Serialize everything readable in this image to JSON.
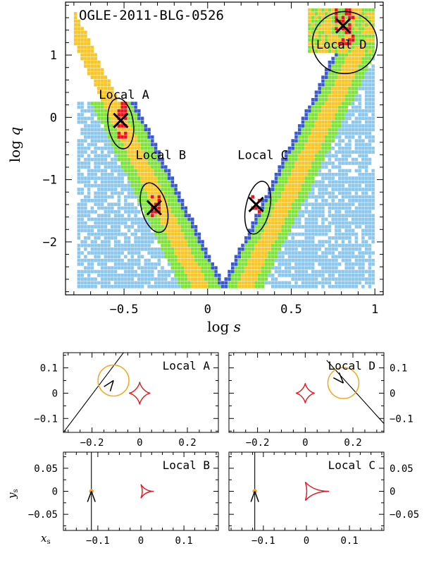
{
  "colors": {
    "white": "#ffffff",
    "blue": "#3a59d1",
    "lightblue": "#8ec7ec",
    "green": "#7fe23a",
    "yellow": "#f7c62a",
    "red": "#e8141b",
    "orange": "#f5a623",
    "caustic": "#e8141b"
  },
  "chart_data": [
    {
      "type": "heatmap",
      "title": "OGLE-2011-BLG-0526",
      "xlabel": "log s",
      "ylabel": "log q",
      "xlim": [
        -0.85,
        1.05
      ],
      "ylim": [
        -2.85,
        1.85
      ],
      "xticks": [
        -0.5,
        0,
        0.5,
        1
      ],
      "xtick_labels": [
        "−0.5",
        "0",
        "0.5",
        "1"
      ],
      "yticks": [
        -2,
        -1,
        0,
        1
      ],
      "ytick_labels": [
        "−2",
        "−1",
        "0",
        "1"
      ],
      "annotations": [
        {
          "label": "Local A",
          "x": -0.52,
          "y": -0.05,
          "label_x": -0.5,
          "label_y": 0.3
        },
        {
          "label": "Local B",
          "x": -0.32,
          "y": -1.45,
          "label_x": -0.28,
          "label_y": -0.67
        },
        {
          "label": "Local C",
          "x": 0.29,
          "y": -1.4,
          "label_x": 0.33,
          "label_y": -0.67
        },
        {
          "label": "Local D",
          "x": 0.81,
          "y": 1.47,
          "label_x": 0.8,
          "label_y": 1.1
        }
      ]
    },
    {
      "type": "scatter",
      "title": "Local A",
      "xlabel": "",
      "ylabel": "",
      "xlim": [
        -0.32,
        0.33
      ],
      "ylim": [
        -0.155,
        0.16
      ],
      "xticks": [
        -0.2,
        0,
        0.2
      ],
      "xtick_labels": [
        "−0.2",
        "0",
        "0.2"
      ],
      "yticks": [
        -0.1,
        0,
        0.1
      ],
      "ytick_labels": [
        "−0.1",
        "0",
        "0.1"
      ],
      "source": {
        "x": -0.11,
        "y": 0.05,
        "r": 0.065
      },
      "caustic": {
        "x": 0.0,
        "y": 0.0,
        "size": 0.045
      },
      "trajectory": [
        [
          -0.32,
          -0.155
        ],
        [
          -0.02,
          0.22
        ]
      ]
    },
    {
      "type": "scatter",
      "title": "Local D",
      "xlabel": "",
      "ylabel": "",
      "xlim": [
        -0.32,
        0.33
      ],
      "ylim": [
        -0.155,
        0.16
      ],
      "xticks": [
        -0.2,
        0,
        0.2
      ],
      "xtick_labels": [
        "−0.2",
        "0",
        "0.2"
      ],
      "yticks": [
        -0.1,
        0,
        0.1
      ],
      "ytick_labels": [
        "−0.1",
        "0",
        "0.1"
      ],
      "source": {
        "x": 0.16,
        "y": 0.04,
        "r": 0.065
      },
      "caustic": {
        "x": 0.0,
        "y": 0.0,
        "size": 0.04
      },
      "trajectory": [
        [
          0.09,
          0.13
        ],
        [
          0.33,
          -0.12
        ]
      ]
    },
    {
      "type": "scatter",
      "title": "Local B",
      "xlabel": "x_s",
      "ylabel": "y_s",
      "xlim": [
        -0.18,
        0.18
      ],
      "ylim": [
        -0.085,
        0.085
      ],
      "xticks": [
        -0.1,
        0,
        0.1
      ],
      "xtick_labels": [
        "−0.1",
        "0",
        "0.1"
      ],
      "yticks": [
        -0.05,
        0,
        0.05
      ],
      "ytick_labels": [
        "−0.05",
        "0",
        "0.05"
      ],
      "source": {
        "x": -0.115,
        "y": 0.0,
        "r": 0.003
      },
      "caustic": {
        "x": 0.015,
        "y": 0.0,
        "width": 0.03,
        "height": 0.015
      },
      "trajectory": [
        [
          -0.115,
          -0.085
        ],
        [
          -0.115,
          0.085
        ]
      ]
    },
    {
      "type": "scatter",
      "title": "Local C",
      "xlabel": "",
      "ylabel": "",
      "xlim": [
        -0.18,
        0.18
      ],
      "ylim": [
        -0.085,
        0.085
      ],
      "xticks": [
        -0.1,
        0,
        0.1
      ],
      "xtick_labels": [
        "−0.1",
        "0",
        "0.1"
      ],
      "yticks": [
        -0.05,
        0,
        0.05
      ],
      "ytick_labels": [
        "−0.05",
        "0",
        "0.05"
      ],
      "source": {
        "x": -0.12,
        "y": 0.0,
        "r": 0.003
      },
      "caustic": {
        "x": 0.025,
        "y": 0.0,
        "width": 0.055,
        "height": 0.02
      },
      "trajectory": [
        [
          -0.12,
          -0.085
        ],
        [
          -0.12,
          0.085
        ]
      ]
    }
  ]
}
